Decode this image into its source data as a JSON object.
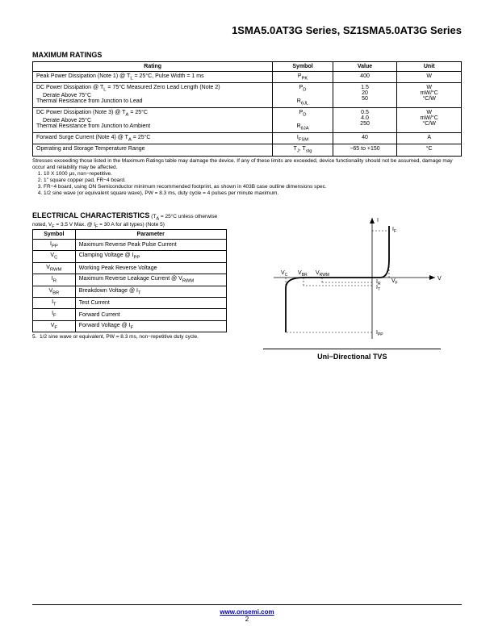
{
  "header": {
    "title": "1SMA5.0AT3G Series, SZ1SMA5.0AT3G Series"
  },
  "maxRatings": {
    "heading": "MAXIMUM RATINGS",
    "columns": [
      "Rating",
      "Symbol",
      "Value",
      "Unit"
    ],
    "rows": [
      {
        "rating": "Peak Power Dissipation (Note 1) @ T<sub>L</sub> = 25°C, Pulse Width = 1 ms",
        "symbol": "P<sub>PK</sub>",
        "value": "400",
        "unit": "W"
      },
      {
        "rating": "DC Power Dissipation @ T<sub>L</sub> = 75°C Measured Zero Lead Length (Note 2)<br><span class='indent'>Derate Above 75°C</span><br>Thermal Resistance from Junction to Lead",
        "symbol": "P<sub>D</sub><br><br>R<sub>θJL</sub>",
        "value": "1.5<br>20<br>50",
        "unit": "W<br>mW/°C<br>°C/W"
      },
      {
        "rating": "DC Power Dissipation (Note 3) @ T<sub>A</sub> = 25°C<br><span class='indent'>Derate Above 25°C</span><br>Thermal Resistance from Junction to Ambient",
        "symbol": "P<sub>D</sub><br><br>R<sub>θJA</sub>",
        "value": "0.5<br>4.0<br>250",
        "unit": "W<br>mW/°C<br>°C/W"
      },
      {
        "rating": "Forward Surge Current (Note 4) @ T<sub>A</sub> = 25°C",
        "symbol": "I<sub>FSM</sub>",
        "value": "40",
        "unit": "A"
      },
      {
        "rating": "Operating and Storage Temperature Range",
        "symbol": "T<sub>J</sub>, T<sub>stg</sub>",
        "value": "−65 to +150",
        "unit": "°C"
      }
    ],
    "footnote": "Stresses exceeding those listed in the Maximum Ratings table may damage the device. If any of these limits are exceeded, device functionality should not be assumed, damage may occur and reliability may be affected.",
    "notes": [
      "10 X 1000 μs, non−repetitive.",
      "1″ square copper pad, FR−4 board.",
      "FR−4 board, using ON Semiconductor minimum recommended footprint, as shown in 403B case outline dimensions spec.",
      "1/2 sine wave (or equivalent square wave), PW = 8.3 ms, duty cycle = 4 pulses per minute maximum."
    ]
  },
  "elec": {
    "heading": "ELECTRICAL CHARACTERISTICS",
    "sub": "(T<sub>A</sub> = 25°C unless otherwise noted, V<sub>F</sub> = 3.5 V Max. @ I<sub>F</sub> = 30 A for all types) (Note 5)",
    "columns": [
      "Symbol",
      "Parameter"
    ],
    "rows": [
      {
        "symbol": "I<sub>PP</sub>",
        "parameter": "Maximum Reverse Peak Pulse Current"
      },
      {
        "symbol": "V<sub>C</sub>",
        "parameter": "Clamping Voltage @ I<sub>PP</sub>"
      },
      {
        "symbol": "V<sub>RWM</sub>",
        "parameter": "Working Peak Reverse Voltage"
      },
      {
        "symbol": "I<sub>R</sub>",
        "parameter": "Maximum Reverse Leakage Current @ V<sub>RWM</sub>"
      },
      {
        "symbol": "V<sub>BR</sub>",
        "parameter": "Breakdown Voltage @ I<sub>T</sub>"
      },
      {
        "symbol": "I<sub>T</sub>",
        "parameter": "Test Current"
      },
      {
        "symbol": "I<sub>F</sub>",
        "parameter": "Forward Current"
      },
      {
        "symbol": "V<sub>F</sub>",
        "parameter": "Forward Voltage @ I<sub>F</sub>"
      }
    ],
    "note5": "1/2 sine wave or equivalent, PW = 8.3 ms, non−repetitive duty cycle."
  },
  "diagram": {
    "caption": "Uni−Directional TVS",
    "labels": {
      "I": "I",
      "V": "V",
      "VC": "V",
      "VCsub": "C",
      "VBR": "V",
      "VBRsub": "BR",
      "VRWM": "V",
      "VRWMsub": "RWM",
      "IF": "I",
      "IFsub": "F",
      "IR": "I",
      "IRsub": "R",
      "IT": "I",
      "ITsub": "T",
      "VF": "V",
      "VFsub": "F",
      "IPP": "I",
      "IPPsub": "PP"
    },
    "colors": {
      "stroke": "#000000",
      "bg": "#ffffff"
    }
  },
  "footer": {
    "url": "www.onsemi.com",
    "page": "2"
  }
}
